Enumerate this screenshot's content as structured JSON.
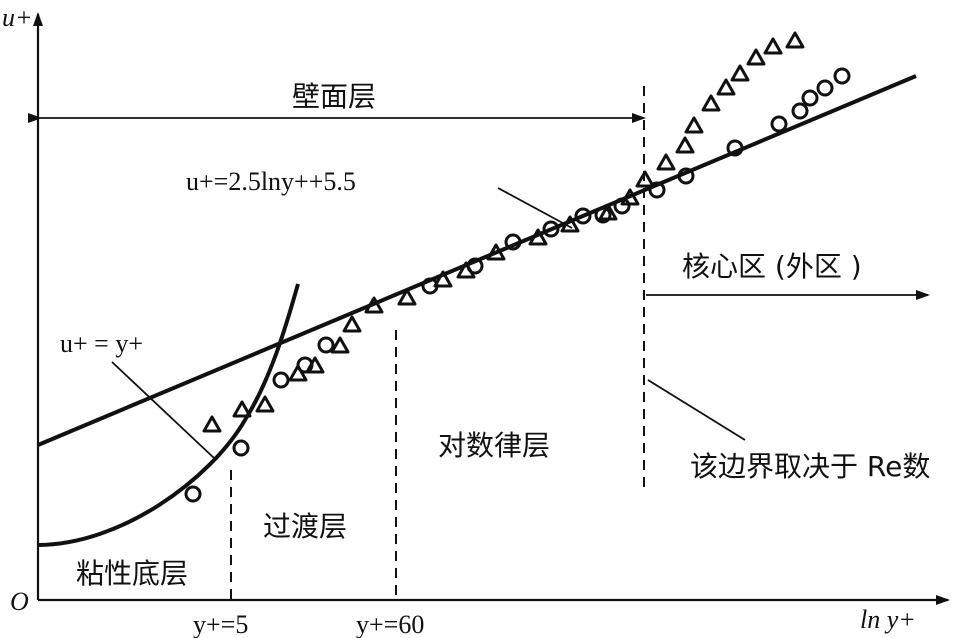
{
  "axes": {
    "y_label": "u+",
    "x_label": "ln y+",
    "origin": "O"
  },
  "zones": {
    "wall_layer": "壁面层",
    "core_region": "核心区 (外区 )",
    "viscous_sublayer": "粘性底层",
    "buffer_layer": "过渡层",
    "log_layer": "对数律层"
  },
  "equations": {
    "log_law": "u+=2.5lny++5.5",
    "linear_law": "u+ = y+"
  },
  "boundaries": {
    "y5": "y+=5",
    "y60": "y+=60",
    "note": "该边界取决于 Re数"
  },
  "markers": {
    "circle": "circle-marker",
    "triangle": "triangle-marker"
  },
  "colors": {
    "ink": "#111111",
    "background": "#ffffff"
  }
}
